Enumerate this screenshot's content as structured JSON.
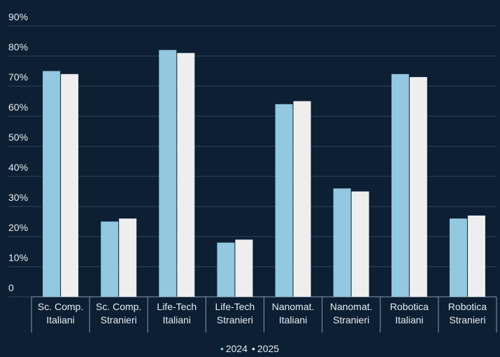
{
  "chart_data": {
    "type": "bar",
    "categories": [
      "Sc. Comp.\nItaliani",
      "Sc. Comp.\nStranieri",
      "Life-Tech\nItaliani",
      "Life-Tech\nStranieri",
      "Nanomat.\nItaliani",
      "Nanomat.\nStranieri",
      "Robotica\nItaliani",
      "Robotica\nStranieri"
    ],
    "series": [
      {
        "name": "2024",
        "color": "#92c8e0",
        "values": [
          75,
          25,
          82,
          18,
          64,
          36,
          74,
          26
        ]
      },
      {
        "name": "2025",
        "color": "#eeeeee",
        "values": [
          74,
          26,
          81,
          19,
          65,
          35,
          73,
          27
        ]
      }
    ],
    "ylim": [
      0,
      90
    ],
    "yticks": [
      0,
      {
        "value": 10,
        "label": "10%"
      },
      {
        "value": 20,
        "label": "20%"
      },
      {
        "value": 30,
        "label": "30%"
      },
      {
        "value": 40,
        "label": "40%"
      },
      {
        "value": 50,
        "label": "50%"
      },
      {
        "value": 60,
        "label": "60%"
      },
      {
        "value": 70,
        "label": "70%"
      },
      {
        "value": 80,
        "label": "80%"
      },
      {
        "value": 90,
        "label": "90%"
      }
    ],
    "grid": true,
    "legend": "bottom"
  }
}
